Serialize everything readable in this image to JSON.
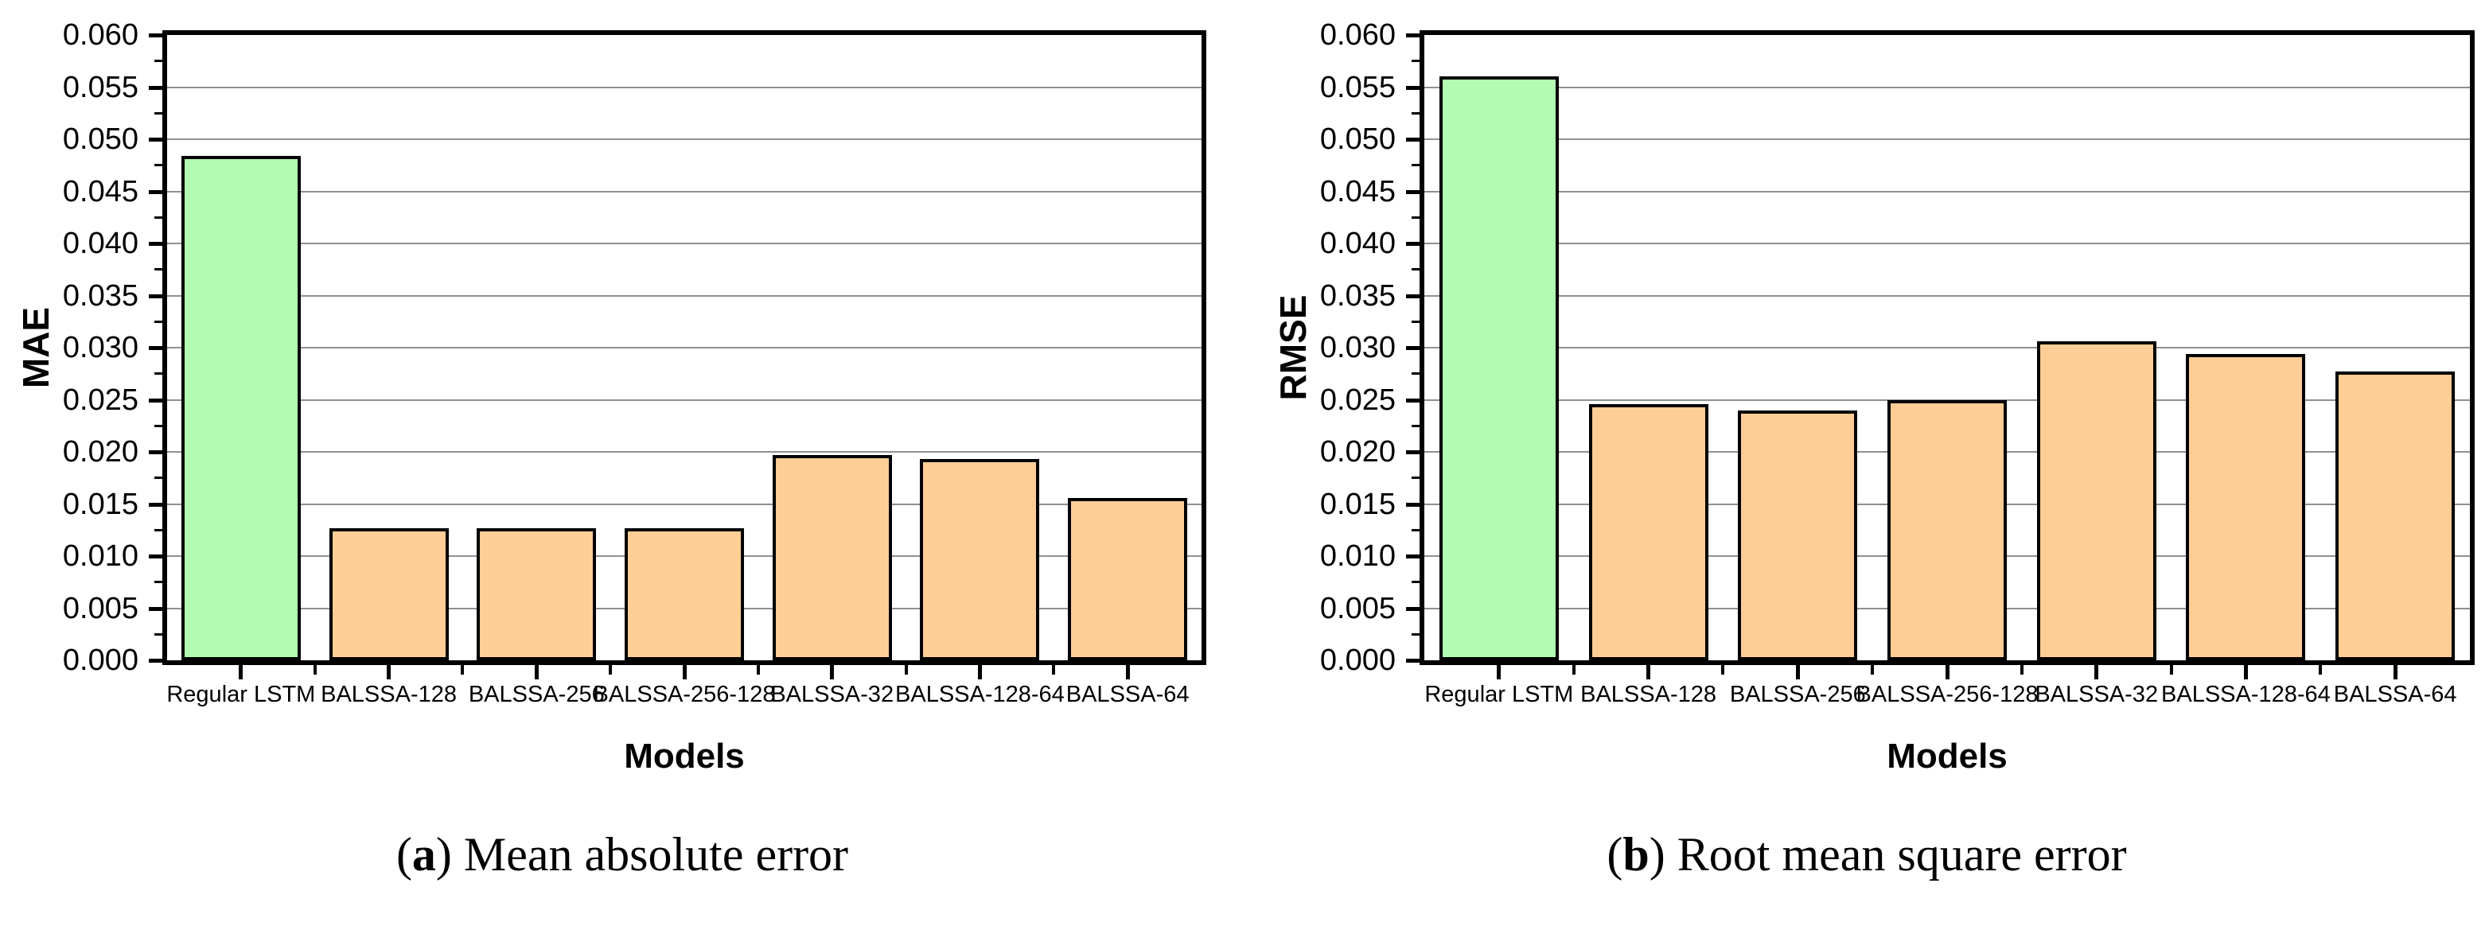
{
  "figure": {
    "background": "#ffffff",
    "captions": [
      {
        "label": "a",
        "text": "Mean absolute error"
      },
      {
        "label": "b",
        "text": "Root mean square error"
      }
    ]
  },
  "colors": {
    "highlight_bar": "#b3fab3",
    "default_bar": "#fece96",
    "bar_border": "#000000",
    "gridline": "#909090",
    "axis": "#000000"
  },
  "chart_data": [
    {
      "type": "bar",
      "title": "",
      "xlabel": "Models",
      "ylabel": "MAE",
      "categories": [
        "Regular LSTM",
        "BALSSA-128",
        "BALSSA-256",
        "BALSSA-256-128",
        "BALSSA-32",
        "BALSSA-128-64",
        "BALSSA-64"
      ],
      "values": [
        0.0484,
        0.0127,
        0.0127,
        0.0127,
        0.0197,
        0.0193,
        0.0156
      ],
      "ylim": [
        0.0,
        0.06
      ],
      "ytick_step": 0.005,
      "ytick_labels": [
        "0.000",
        "0.005",
        "0.010",
        "0.015",
        "0.020",
        "0.025",
        "0.030",
        "0.035",
        "0.040",
        "0.045",
        "0.050",
        "0.055",
        "0.060"
      ],
      "grid": "horizontal-major",
      "legend": "none",
      "bar_colors": [
        "#b3fab3",
        "#fece96",
        "#fece96",
        "#fece96",
        "#fece96",
        "#fece96",
        "#fece96"
      ],
      "caption": "(a) Mean absolute error"
    },
    {
      "type": "bar",
      "title": "",
      "xlabel": "Models",
      "ylabel": "RMSE",
      "categories": [
        "Regular LSTM",
        "BALSSA-128",
        "BALSSA-256",
        "BALSSA-256-128",
        "BALSSA-32",
        "BALSSA-128-64",
        "BALSSA-64"
      ],
      "values": [
        0.056,
        0.0246,
        0.024,
        0.025,
        0.0306,
        0.0294,
        0.0277
      ],
      "ylim": [
        0.0,
        0.06
      ],
      "ytick_step": 0.005,
      "ytick_labels": [
        "0.000",
        "0.005",
        "0.010",
        "0.015",
        "0.020",
        "0.025",
        "0.030",
        "0.035",
        "0.040",
        "0.045",
        "0.050",
        "0.055",
        "0.060"
      ],
      "grid": "horizontal-major",
      "legend": "none",
      "bar_colors": [
        "#b3fab3",
        "#fece96",
        "#fece96",
        "#fece96",
        "#fece96",
        "#fece96",
        "#fece96"
      ],
      "caption": "(b) Root mean square error"
    }
  ]
}
